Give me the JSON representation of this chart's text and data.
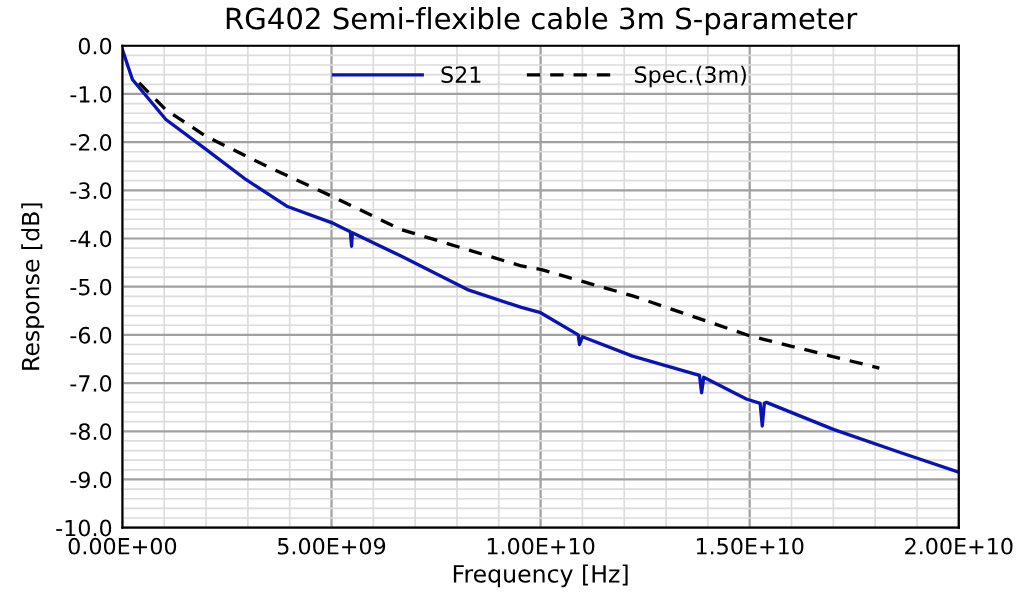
{
  "chart_data": {
    "type": "line",
    "title": "RG402 Semi-flexible cable 3m S-parameter",
    "xlabel": "Frequency [Hz]",
    "ylabel": "Response [dB]",
    "xlim": [
      0,
      20000000000.0
    ],
    "ylim": [
      -10,
      0
    ],
    "xticks": [
      {
        "value": 0,
        "label": "0.00E+00"
      },
      {
        "value": 5000000000.0,
        "label": "5.00E+09"
      },
      {
        "value": 10000000000.0,
        "label": "1.00E+10"
      },
      {
        "value": 15000000000.0,
        "label": "1.50E+10"
      },
      {
        "value": 20000000000.0,
        "label": "2.00E+10"
      }
    ],
    "yticks": [
      {
        "value": 0,
        "label": "0.0"
      },
      {
        "value": -1,
        "label": "-1.0"
      },
      {
        "value": -2,
        "label": "-2.0"
      },
      {
        "value": -3,
        "label": "-3.0"
      },
      {
        "value": -4,
        "label": "-4.0"
      },
      {
        "value": -5,
        "label": "-5.0"
      },
      {
        "value": -6,
        "label": "-6.0"
      },
      {
        "value": -7,
        "label": "-7.0"
      },
      {
        "value": -8,
        "label": "-8.0"
      },
      {
        "value": -9,
        "label": "-9.0"
      },
      {
        "value": -10,
        "label": "-10.0"
      }
    ],
    "grid": true,
    "legend": "top",
    "series": [
      {
        "name": "S21",
        "color": "#0a14b4",
        "line_style": "solid",
        "x": [
          0,
          240000000.0,
          1040000000.0,
          2000000000.0,
          2960000000.0,
          3930000000.0,
          5000000000.0,
          5450000000.0,
          5480000000.0,
          5500000000.0,
          6650000000.0,
          8250000000.0,
          9540000000.0,
          10000000000.0,
          10900000000.0,
          10930000000.0,
          11000000000.0,
          12200000000.0,
          13800000000.0,
          13850000000.0,
          13900000000.0,
          14920000000.0,
          15250000000.0,
          15300000000.0,
          15350000000.0,
          15400000000.0,
          17000000000.0,
          18600000000.0,
          20000000000.0
        ],
        "values": [
          -0.08,
          -0.7,
          -1.53,
          -2.15,
          -2.78,
          -3.33,
          -3.67,
          -3.86,
          -4.16,
          -3.88,
          -4.36,
          -5.06,
          -5.43,
          -5.54,
          -6.0,
          -6.2,
          -6.04,
          -6.44,
          -6.84,
          -7.2,
          -6.88,
          -7.33,
          -7.42,
          -7.89,
          -7.42,
          -7.4,
          -7.96,
          -8.44,
          -8.85
        ]
      },
      {
        "name": "Spec.(3m)",
        "color": "#000000",
        "line_style": "dashed",
        "x": [
          400000000.0,
          1040000000.0,
          2000000000.0,
          3450000000.0,
          5000000000.0,
          6650000000.0,
          9540000000.0,
          10000000000.0,
          12200000000.0,
          15000000000.0,
          18100000000.0
        ],
        "values": [
          -0.77,
          -1.33,
          -1.88,
          -2.5,
          -3.12,
          -3.81,
          -4.57,
          -4.64,
          -5.19,
          -6.02,
          -6.69
        ]
      }
    ]
  }
}
